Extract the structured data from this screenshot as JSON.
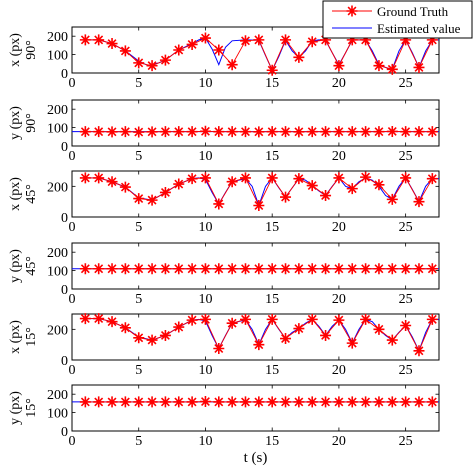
{
  "chart_data": {
    "type": "line",
    "xlabel": "t (s)",
    "xlim": [
      0,
      27.5
    ],
    "xticks": [
      0,
      5,
      10,
      15,
      20,
      25
    ],
    "legend": {
      "placement": "top-right",
      "entries": [
        {
          "label": "Ground Truth",
          "color": "#ff0000",
          "marker": "asterisk"
        },
        {
          "label": "Estimated value",
          "color": "#0000ff",
          "marker": "none"
        }
      ]
    },
    "panels": [
      {
        "ylabel": "x (px)",
        "angle_label": "90°",
        "ylim": [
          0,
          250
        ],
        "yticks": [
          0,
          100,
          200
        ],
        "ground_truth": {
          "t": [
            1,
            2,
            3,
            4,
            5,
            6,
            7,
            8,
            9,
            10,
            11,
            12,
            13,
            14,
            15,
            16,
            17,
            18,
            19,
            20,
            21,
            22,
            23,
            24,
            25,
            26,
            27
          ],
          "values": [
            180,
            180,
            160,
            120,
            55,
            40,
            70,
            125,
            155,
            190,
            125,
            45,
            175,
            180,
            15,
            180,
            85,
            170,
            180,
            40,
            180,
            180,
            40,
            20,
            180,
            30,
            180
          ]
        },
        "estimated": {
          "t": [
            1,
            2,
            3,
            4,
            5,
            5.7,
            6.5,
            7,
            8,
            9,
            9.5,
            10,
            10.5,
            11,
            11.5,
            12,
            13,
            14,
            14.5,
            15,
            15.5,
            16,
            16.5,
            17,
            17.5,
            18,
            18.5,
            19,
            19.5,
            20,
            20.5,
            21,
            21.5,
            22,
            22.5,
            23,
            23.5,
            24,
            24.5,
            25,
            25.5,
            26,
            26.5,
            27,
            27.5
          ],
          "values": [
            180,
            180,
            160,
            120,
            65,
            40,
            55,
            70,
            125,
            160,
            180,
            190,
            130,
            45,
            140,
            175,
            180,
            178,
            95,
            15,
            90,
            178,
            120,
            85,
            120,
            175,
            180,
            178,
            110,
            45,
            110,
            178,
            180,
            178,
            120,
            45,
            30,
            20,
            120,
            180,
            110,
            30,
            120,
            178,
            180
          ]
        }
      },
      {
        "ylabel": "y (px)",
        "angle_label": "90°",
        "ylim": [
          0,
          250
        ],
        "yticks": [
          0,
          100,
          200
        ],
        "ground_truth": {
          "t": [
            1,
            2,
            3,
            4,
            5,
            6,
            7,
            8,
            9,
            10,
            11,
            12,
            13,
            14,
            15,
            16,
            17,
            18,
            19,
            20,
            21,
            22,
            23,
            24,
            25,
            26,
            27
          ],
          "values": [
            78,
            78,
            77,
            78,
            76,
            77,
            78,
            78,
            78,
            80,
            78,
            78,
            78,
            77,
            78,
            78,
            77,
            78,
            78,
            78,
            78,
            78,
            78,
            79,
            78,
            78,
            78
          ]
        },
        "estimated": {
          "t": [
            0,
            27.5
          ],
          "values": [
            78,
            78
          ]
        }
      },
      {
        "ylabel": "x (px)",
        "angle_label": "45°",
        "ylim": [
          0,
          300
        ],
        "yticks": [
          0,
          200
        ],
        "ground_truth": {
          "t": [
            1,
            2,
            3,
            4,
            5,
            6,
            7,
            8,
            9,
            10,
            11,
            12,
            13,
            14,
            15,
            16,
            17,
            18,
            19,
            20,
            21,
            22,
            23,
            24,
            25,
            26,
            27
          ],
          "values": [
            255,
            255,
            230,
            195,
            120,
            110,
            160,
            215,
            250,
            255,
            85,
            230,
            255,
            75,
            255,
            130,
            250,
            205,
            140,
            255,
            185,
            260,
            210,
            115,
            255,
            100,
            250
          ]
        },
        "estimated": {
          "t": [
            1,
            2,
            3,
            4,
            5,
            6,
            7,
            8,
            9,
            9.5,
            10,
            10.5,
            11,
            11.5,
            12,
            13,
            13.5,
            14,
            14.5,
            15,
            15.5,
            16,
            16.5,
            17,
            17.5,
            18,
            18.5,
            19,
            19.5,
            20,
            20.5,
            21,
            21.5,
            22,
            22.5,
            23,
            23.5,
            24,
            24.5,
            25,
            25.5,
            26,
            26.5,
            27,
            27.5
          ],
          "values": [
            255,
            255,
            230,
            195,
            125,
            110,
            160,
            215,
            250,
            255,
            245,
            160,
            85,
            160,
            230,
            250,
            200,
            75,
            200,
            255,
            190,
            130,
            190,
            250,
            240,
            205,
            170,
            140,
            200,
            255,
            200,
            185,
            230,
            255,
            240,
            200,
            140,
            115,
            200,
            255,
            180,
            100,
            200,
            250,
            250
          ]
        }
      },
      {
        "ylabel": "y (px)",
        "angle_label": "45°",
        "ylim": [
          0,
          250
        ],
        "yticks": [
          0,
          100,
          200
        ],
        "ground_truth": {
          "t": [
            1,
            2,
            3,
            4,
            5,
            6,
            7,
            8,
            9,
            10,
            11,
            12,
            13,
            14,
            15,
            16,
            17,
            18,
            19,
            20,
            21,
            22,
            23,
            24,
            25,
            26,
            27
          ],
          "values": [
            110,
            110,
            110,
            110,
            110,
            110,
            110,
            110,
            110,
            110,
            110,
            110,
            110,
            110,
            110,
            110,
            110,
            110,
            110,
            110,
            110,
            110,
            110,
            110,
            110,
            110,
            110
          ]
        },
        "estimated": {
          "t": [
            0,
            27.5
          ],
          "values": [
            110,
            110
          ]
        }
      },
      {
        "ylabel": "x (px)",
        "angle_label": "15°",
        "ylim": [
          0,
          300
        ],
        "yticks": [
          0,
          200
        ],
        "ground_truth": {
          "t": [
            1,
            2,
            3,
            4,
            5,
            6,
            7,
            8,
            9,
            10,
            11,
            12,
            13,
            14,
            15,
            16,
            17,
            18,
            19,
            20,
            21,
            22,
            23,
            24,
            25,
            26,
            27
          ],
          "values": [
            270,
            270,
            250,
            210,
            145,
            130,
            160,
            215,
            260,
            265,
            75,
            240,
            265,
            100,
            265,
            140,
            205,
            265,
            160,
            260,
            110,
            265,
            200,
            130,
            225,
            60,
            265
          ]
        },
        "estimated": {
          "t": [
            1,
            2,
            3,
            4,
            5,
            6,
            7,
            8,
            9,
            9.5,
            10,
            10.5,
            11,
            11.5,
            12,
            13,
            13.5,
            14,
            14.5,
            15,
            15.5,
            16,
            16.5,
            17,
            17.5,
            18,
            18.5,
            19,
            19.5,
            20,
            20.5,
            21,
            21.5,
            22,
            22.5,
            23,
            23.5,
            24,
            24.5,
            25,
            25.5,
            26,
            26.5,
            27,
            27.5
          ],
          "values": [
            270,
            270,
            250,
            210,
            150,
            130,
            160,
            215,
            260,
            265,
            255,
            160,
            75,
            160,
            240,
            262,
            200,
            100,
            200,
            265,
            200,
            140,
            180,
            205,
            240,
            265,
            220,
            160,
            220,
            260,
            200,
            110,
            200,
            265,
            250,
            200,
            160,
            130,
            180,
            225,
            150,
            60,
            180,
            265,
            265
          ]
        }
      },
      {
        "ylabel": "y (px)",
        "angle_label": "15°",
        "ylim": [
          0,
          250
        ],
        "yticks": [
          0,
          100,
          200
        ],
        "ground_truth": {
          "t": [
            1,
            2,
            3,
            4,
            5,
            6,
            7,
            8,
            9,
            10,
            11,
            12,
            13,
            14,
            15,
            16,
            17,
            18,
            19,
            20,
            21,
            22,
            23,
            24,
            25,
            26,
            27
          ],
          "values": [
            158,
            158,
            158,
            158,
            158,
            158,
            158,
            158,
            158,
            160,
            158,
            158,
            158,
            158,
            158,
            158,
            158,
            158,
            158,
            158,
            158,
            158,
            158,
            158,
            158,
            158,
            158
          ]
        },
        "estimated": {
          "t": [
            0,
            27.5
          ],
          "values": [
            158,
            158
          ]
        }
      }
    ]
  }
}
